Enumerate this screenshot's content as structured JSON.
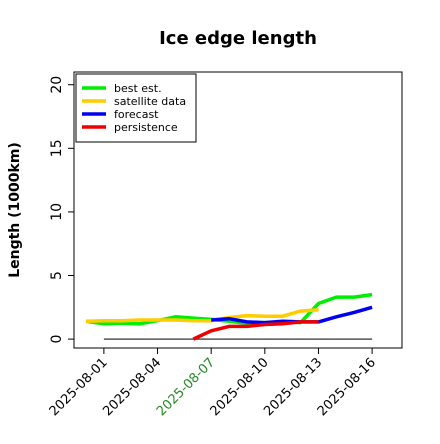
{
  "chart_data": {
    "type": "line",
    "title": "Ice edge length",
    "xlabel": "",
    "ylabel": "Length (1000km)",
    "ylim": [
      -0.7,
      21
    ],
    "xlim": [
      "2025-07-31",
      "2025-08-17"
    ],
    "grid": false,
    "legend_position": "top-left",
    "x_ticks": [
      "2025-08-01",
      "2025-08-04",
      "2025-08-07",
      "2025-08-10",
      "2025-08-13",
      "2025-08-16"
    ],
    "x_tick_colors": [
      "#000000",
      "#000000",
      "#228B22",
      "#000000",
      "#000000",
      "#000000"
    ],
    "y_ticks": [
      0,
      5,
      10,
      15,
      20
    ],
    "reference_line": {
      "x": [
        "2025-08-01",
        "2025-08-16"
      ],
      "y": 0.0,
      "color": "#555555"
    },
    "series": [
      {
        "name": "best est.",
        "color": "#00ee00",
        "x": [
          "2025-07-31",
          "2025-08-01",
          "2025-08-02",
          "2025-08-03",
          "2025-08-04",
          "2025-08-05",
          "2025-08-06",
          "2025-08-07",
          "2025-08-08",
          "2025-08-09",
          "2025-08-10",
          "2025-08-11",
          "2025-08-12",
          "2025-08-13",
          "2025-08-14",
          "2025-08-15",
          "2025-08-16"
        ],
        "values": [
          1.4,
          1.2,
          1.25,
          1.2,
          1.45,
          1.75,
          1.65,
          1.55,
          1.4,
          1.25,
          1.3,
          1.35,
          1.3,
          2.8,
          3.3,
          3.3,
          3.5
        ]
      },
      {
        "name": "satellite data",
        "color": "#ffcc00",
        "x": [
          "2025-07-31",
          "2025-08-01",
          "2025-08-02",
          "2025-08-03",
          "2025-08-04",
          "2025-08-05",
          "2025-08-06",
          "2025-08-07",
          "2025-08-08",
          "2025-08-09",
          "2025-08-10",
          "2025-08-11",
          "2025-08-12",
          "2025-08-13"
        ],
        "values": [
          1.4,
          1.45,
          1.45,
          1.5,
          1.5,
          1.5,
          1.45,
          1.45,
          1.7,
          1.85,
          1.8,
          1.8,
          2.2,
          2.3
        ]
      },
      {
        "name": "forecast",
        "color": "#0000ee",
        "x": [
          "2025-08-07",
          "2025-08-08",
          "2025-08-09",
          "2025-08-10",
          "2025-08-11",
          "2025-08-12",
          "2025-08-13",
          "2025-08-14",
          "2025-08-15",
          "2025-08-16"
        ],
        "values": [
          1.5,
          1.6,
          1.35,
          1.3,
          1.4,
          1.35,
          1.35,
          1.75,
          2.1,
          2.5
        ]
      },
      {
        "name": "persistence",
        "color": "#ee0000",
        "x": [
          "2025-08-06",
          "2025-08-07",
          "2025-08-08",
          "2025-08-09",
          "2025-08-10",
          "2025-08-11",
          "2025-08-12",
          "2025-08-13"
        ],
        "values": [
          0.0,
          0.65,
          1.0,
          1.0,
          1.15,
          1.2,
          1.35,
          1.35
        ]
      }
    ]
  }
}
